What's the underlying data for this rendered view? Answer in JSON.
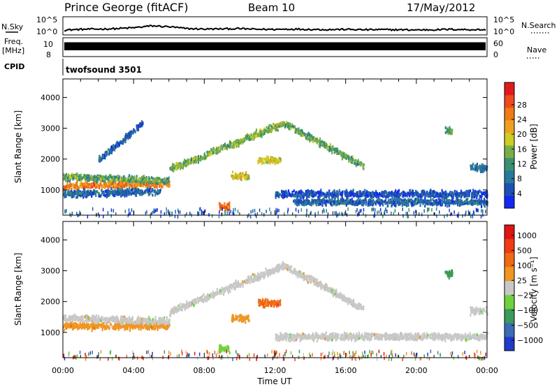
{
  "header": {
    "station": "Prince George (fitACF)",
    "beam": "Beam 10",
    "date": "17/May/2012"
  },
  "chart_data": [
    {
      "id": "nsky",
      "type": "line",
      "left_label": "N.Sky",
      "left_ticks": [
        "10^5",
        "10^0"
      ],
      "right_label": "N.Search",
      "right_ticks": [
        "10^5",
        "10^0"
      ],
      "x_range_hours": [
        0,
        24
      ],
      "series": [
        {
          "x": [
            0,
            1,
            2,
            3,
            4,
            5,
            6,
            7,
            8,
            9,
            10,
            11,
            12,
            13,
            14,
            15,
            16,
            17,
            18,
            19,
            20,
            21,
            22,
            23,
            24
          ],
          "y": [
            0.25,
            0.3,
            0.32,
            0.35,
            0.42,
            0.55,
            0.48,
            0.35,
            0.32,
            0.33,
            0.35,
            0.3,
            0.3,
            0.32,
            0.3,
            0.28,
            0.3,
            0.27,
            0.28,
            0.27,
            0.26,
            0.27,
            0.3,
            0.28,
            0.27
          ]
        }
      ]
    },
    {
      "id": "freq",
      "type": "area",
      "left_label": "Freq.",
      "left_unit": "[MHz]",
      "left_ticks": [
        "10",
        "8"
      ],
      "right_label": "Nave",
      "right_ticks": [
        "60",
        "0"
      ],
      "band": [
        0.32,
        0.78
      ]
    },
    {
      "id": "cpid",
      "type": "table",
      "label": "CPID",
      "entries": [
        {
          "x": 0,
          "name": "twofsound 3501"
        }
      ]
    },
    {
      "id": "power",
      "type": "heatmap",
      "ylabel": "Slant Range [km]",
      "x_range_hours": [
        0,
        24
      ],
      "ylim": [
        180,
        4600
      ],
      "yticks": [
        1000,
        2000,
        3000,
        4000
      ],
      "colorbar": {
        "label": "Power [dB]",
        "ticks": [
          "4",
          "8",
          "12",
          "16",
          "20",
          "24",
          "28"
        ],
        "colors": [
          "#1428f0",
          "#1e50b4",
          "#28789c",
          "#3c9070",
          "#78ae46",
          "#cccc22",
          "#f0a020",
          "#f07a14",
          "#ee4a1e",
          "#e01a1a"
        ]
      },
      "features": [
        {
          "x0": 0,
          "x1": 6,
          "y0": 1150,
          "y1": 1250,
          "v": 0.75,
          "sx": 0.5
        },
        {
          "x0": 0,
          "x1": 6,
          "y0": 1460,
          "y1": 1340,
          "v": 0.4,
          "sx": 0.5
        },
        {
          "x0": 0,
          "x1": 5.5,
          "y0": 900,
          "y1": 1000,
          "v": 0.2,
          "sx": 0.3
        },
        {
          "x0": 6,
          "x1": 12.5,
          "y0": 1700,
          "y1": 3200,
          "v": 0.45,
          "sx": 0.5
        },
        {
          "x0": 12.5,
          "x1": 17,
          "y0": 3200,
          "y1": 1800,
          "v": 0.4,
          "sx": 0.5
        },
        {
          "x0": 2,
          "x1": 4.5,
          "y0": 2000,
          "y1": 3200,
          "v": 0.2,
          "sx": 0.3
        },
        {
          "x0": 9.5,
          "x1": 10.5,
          "y0": 1500,
          "y1": 1500,
          "v": 0.55,
          "sx": 0.3
        },
        {
          "x0": 11,
          "x1": 12.3,
          "y0": 2000,
          "y1": 2000,
          "v": 0.55,
          "sx": 0.3
        },
        {
          "x0": 8.8,
          "x1": 9.4,
          "y0": 500,
          "y1": 500,
          "v": 0.8,
          "sx": 0.1
        },
        {
          "x0": 12,
          "x1": 24,
          "y0": 900,
          "y1": 900,
          "v": 0.15,
          "sx": 0.3
        },
        {
          "x0": 13,
          "x1": 24,
          "y0": 650,
          "y1": 650,
          "v": 0.2,
          "sx": 0.3
        },
        {
          "x0": 21.6,
          "x1": 22,
          "y0": 2950,
          "y1": 2950,
          "v": 0.4,
          "sx": 0.1
        },
        {
          "x0": 23,
          "x1": 24,
          "y0": 1750,
          "y1": 1750,
          "v": 0.25,
          "sx": 0.3
        }
      ]
    },
    {
      "id": "velocity",
      "type": "heatmap",
      "ylabel": "Slant Range [km]",
      "xlabel": "Time UT",
      "x_range_hours": [
        0,
        24
      ],
      "xticks": [
        "00:00",
        "04:00",
        "08:00",
        "12:00",
        "16:00",
        "20:00",
        "00:00"
      ],
      "ylim": [
        180,
        4600
      ],
      "yticks": [
        1000,
        2000,
        3000,
        4000
      ],
      "colorbar": {
        "label": "Velocity [m s⁻¹]",
        "ticks": [
          "1000",
          "500",
          "100",
          "25",
          "−25",
          "−100",
          "−500",
          "−1000"
        ],
        "colors": [
          "#1e3cc8",
          "#3c6cb4",
          "#3c9a5a",
          "#6ed23c",
          "#c8c8c8",
          "#f09622",
          "#f06a14",
          "#f03c14",
          "#e01414"
        ]
      },
      "features": [
        {
          "x0": 0,
          "x1": 6,
          "y0": 1250,
          "y1": 1250,
          "c": 5,
          "sx": 0.5
        },
        {
          "x0": 0,
          "x1": 6,
          "y0": 1500,
          "y1": 1400,
          "c": 4,
          "sx": 0.5
        },
        {
          "x0": 6,
          "x1": 12.5,
          "y0": 1700,
          "y1": 3200,
          "c": 4,
          "sx": 0.5
        },
        {
          "x0": 12.5,
          "x1": 17,
          "y0": 3200,
          "y1": 1800,
          "c": 4,
          "sx": 0.5
        },
        {
          "x0": 9.5,
          "x1": 10.5,
          "y0": 1500,
          "y1": 1500,
          "c": 5,
          "sx": 0.3
        },
        {
          "x0": 11,
          "x1": 12.3,
          "y0": 2000,
          "y1": 2000,
          "c": 6,
          "sx": 0.3
        },
        {
          "x0": 8.8,
          "x1": 9.4,
          "y0": 500,
          "y1": 500,
          "c": 3,
          "sx": 0.1
        },
        {
          "x0": 12,
          "x1": 24,
          "y0": 900,
          "y1": 900,
          "c": 4,
          "sx": 0.3
        },
        {
          "x0": 21.6,
          "x1": 22,
          "y0": 2950,
          "y1": 2950,
          "c": 2,
          "sx": 0.1
        },
        {
          "x0": 23,
          "x1": 24,
          "y0": 1750,
          "y1": 1750,
          "c": 4,
          "sx": 0.3
        }
      ]
    }
  ]
}
